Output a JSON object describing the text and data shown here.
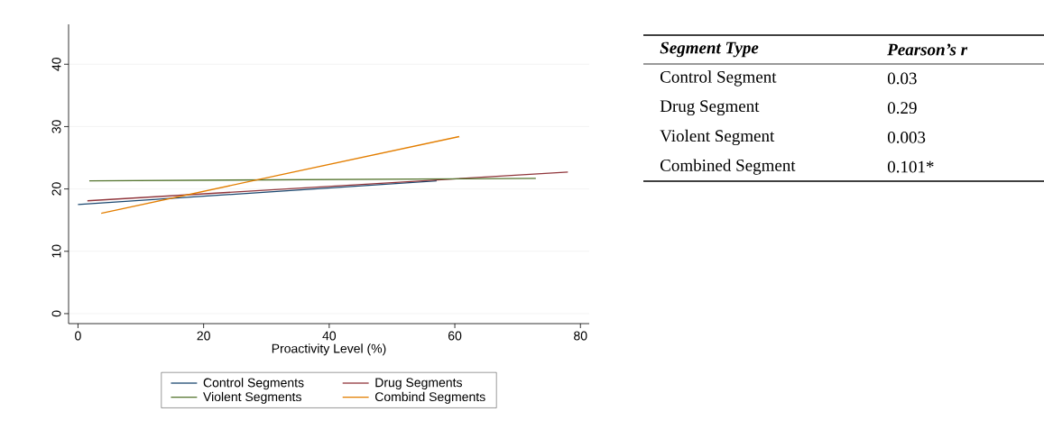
{
  "chart_data": [
    {
      "type": "line",
      "xlabel": "Proactivity Level (%)",
      "xlim": [
        -1.5,
        81.4
      ],
      "ylim": [
        -1.6,
        46.4
      ],
      "xticks": [
        0,
        20,
        40,
        60,
        80
      ],
      "yticks": [
        0,
        10,
        20,
        30,
        40
      ],
      "grid": "y",
      "legend": "bottom",
      "marker": "none",
      "line_style": "solid",
      "series": [
        {
          "name": "Control Segments",
          "color": "#1a476f",
          "x": [
            0,
            57.1
          ],
          "values": [
            17.5,
            21.3
          ]
        },
        {
          "name": "Drug Segments",
          "color": "#90353b",
          "x": [
            1.5,
            78
          ],
          "values": [
            18.1,
            22.7
          ]
        },
        {
          "name": "Violent Segments",
          "color": "#55752f",
          "x": [
            1.8,
            72.9
          ],
          "values": [
            21.3,
            21.7
          ]
        },
        {
          "name": "Combind Segments",
          "color": "#e37e00",
          "x": [
            3.7,
            60.7
          ],
          "values": [
            16.1,
            28.4
          ]
        }
      ]
    },
    {
      "type": "other",
      "xlabel": "Segment Type",
      "ylabel": "Pearson’s r",
      "categories": [
        "Control Segment",
        "Drug Segment",
        "Violent Segment",
        "Combined Segment"
      ],
      "value_labels": [
        "0.03",
        "0.29",
        "0.003",
        "0.101*"
      ]
    }
  ]
}
